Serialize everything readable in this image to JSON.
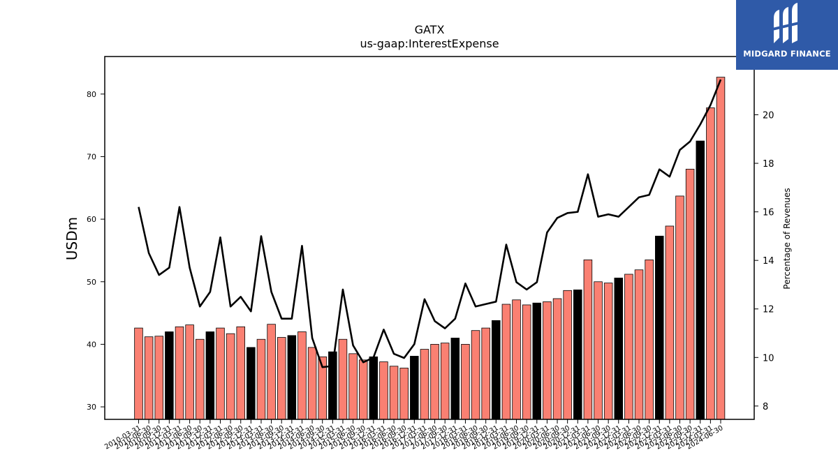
{
  "logo": {
    "text": "MIDGARD FINANCE"
  },
  "chart_data": {
    "type": "bar",
    "title": "GATX",
    "subtitle": "us-gaap:InterestExpense",
    "ylabel": "USDm",
    "y2label": "Percentage of Revenues",
    "ylim": [
      28,
      86
    ],
    "y2lim": [
      7.45,
      22.4
    ],
    "yticks": [
      30,
      40,
      50,
      60,
      70,
      80
    ],
    "y2ticks": [
      8,
      10,
      12,
      14,
      16,
      18,
      20
    ],
    "colors": {
      "quarter_bar": "#fa8072",
      "fiscal_year_end_bar": "#000000",
      "line": "#000000"
    },
    "categories": [
      "2010-03-31",
      "2010-06-30",
      "2010-09-30",
      "2010-12-31",
      "2011-03-31",
      "2011-06-30",
      "2011-09-30",
      "2011-12-31",
      "2012-03-31",
      "2012-06-30",
      "2012-09-30",
      "2012-12-31",
      "2013-03-31",
      "2013-06-30",
      "2013-09-30",
      "2013-12-31",
      "2014-03-31",
      "2014-06-30",
      "2014-09-30",
      "2014-12-31",
      "2015-03-31",
      "2015-06-30",
      "2015-09-30",
      "2015-12-31",
      "2016-03-31",
      "2016-06-30",
      "2016-09-30",
      "2016-12-31",
      "2017-03-31",
      "2017-06-30",
      "2017-09-30",
      "2017-12-31",
      "2018-03-31",
      "2018-06-30",
      "2018-09-30",
      "2018-12-31",
      "2019-03-31",
      "2019-06-30",
      "2019-09-30",
      "2019-12-31",
      "2020-03-31",
      "2020-06-30",
      "2020-09-30",
      "2020-12-31",
      "2021-03-31",
      "2021-06-30",
      "2021-09-30",
      "2021-12-31",
      "2022-03-31",
      "2022-06-30",
      "2022-09-30",
      "2022-12-31",
      "2023-03-31",
      "2023-06-30",
      "2023-09-30",
      "2023-12-31",
      "2024-03-31",
      "2024-06-30"
    ],
    "series": [
      {
        "name": "",
        "type": "bar",
        "values": [
          42.6,
          41.2,
          41.3,
          42.0,
          42.8,
          43.1,
          40.8,
          42.0,
          42.6,
          41.7,
          42.8,
          39.5,
          40.8,
          43.2,
          41.1,
          41.4,
          42.0,
          39.5,
          38.0,
          38.8,
          40.8,
          38.5,
          37.5,
          38.0,
          37.2,
          36.5,
          36.2,
          38.1,
          39.2,
          40.0,
          40.2,
          41.0,
          40.0,
          42.2,
          42.6,
          43.8,
          46.4,
          47.1,
          46.3,
          46.6,
          46.8,
          47.3,
          48.6,
          48.7,
          53.5,
          50.0,
          49.8,
          50.6,
          51.2,
          51.9,
          53.5,
          57.3,
          58.9,
          63.7,
          68.0,
          72.5,
          77.8,
          82.7
        ]
      },
      {
        "name": "",
        "type": "line",
        "axis": "y2",
        "values": [
          16.2,
          14.3,
          13.4,
          13.7,
          16.2,
          13.7,
          12.1,
          12.7,
          14.95,
          12.1,
          12.5,
          11.9,
          15.0,
          12.7,
          11.6,
          11.6,
          14.6,
          10.8,
          9.6,
          9.65,
          12.8,
          10.5,
          9.8,
          10.0,
          11.15,
          10.15,
          9.98,
          10.55,
          12.4,
          11.5,
          11.2,
          11.6,
          13.05,
          12.1,
          12.2,
          12.3,
          14.65,
          13.1,
          12.8,
          13.1,
          15.15,
          15.75,
          15.95,
          16.0,
          17.55,
          15.8,
          15.9,
          15.8,
          16.2,
          16.6,
          16.7,
          17.75,
          17.45,
          18.55,
          18.9,
          19.6,
          20.4,
          21.45
        ]
      }
    ]
  }
}
